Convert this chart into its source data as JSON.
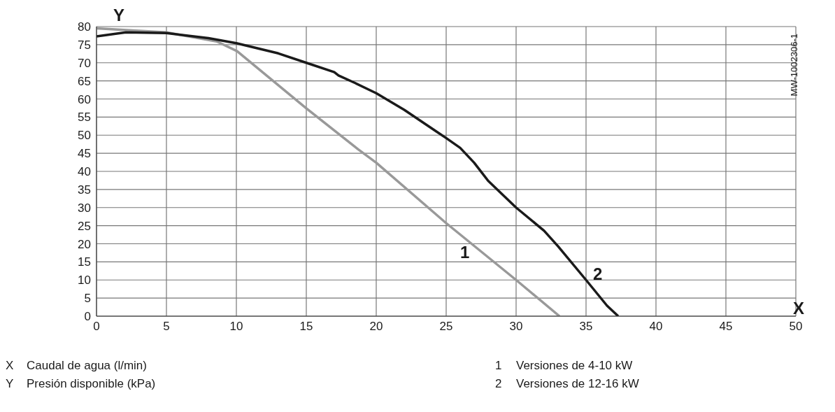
{
  "chart_data": {
    "type": "line",
    "xlabel": "X",
    "ylabel": "Y",
    "xlim": [
      0,
      50
    ],
    "xticks": [
      0,
      5,
      10,
      15,
      20,
      25,
      30,
      35,
      40,
      45,
      50
    ],
    "ylim": [
      0,
      80
    ],
    "yticks": [
      0,
      5,
      10,
      15,
      20,
      25,
      30,
      35,
      40,
      45,
      50,
      55,
      60,
      65,
      70,
      75,
      80
    ],
    "grid": true,
    "marker": "none",
    "line_style": "solid",
    "series": [
      {
        "name": "1",
        "color": "#999999",
        "x": [
          0,
          5,
          8.6,
          10.05,
          15,
          18.7,
          20,
          25,
          30,
          33.1
        ],
        "values": [
          79.5,
          78.4,
          75.9,
          73.2,
          57.4,
          46.1,
          42.4,
          25.7,
          10,
          0
        ]
      },
      {
        "name": "2",
        "color": "#1a1a1a",
        "x": [
          0,
          2.1,
          5,
          8,
          10,
          13,
          15,
          17,
          17.3,
          18.5,
          20,
          22,
          24.3,
          25,
          26,
          27,
          28,
          30,
          32,
          33,
          35,
          36.5,
          37.3
        ],
        "values": [
          77.3,
          78.4,
          78.2,
          76.8,
          75.4,
          72.6,
          70,
          67.4,
          66.5,
          64.4,
          61.6,
          57,
          51,
          49.2,
          46.5,
          42.4,
          37.4,
          30,
          23.6,
          19.3,
          10,
          2.9,
          0
        ]
      }
    ],
    "annotations": [
      "MW-1002306-1",
      "X  Caudal de agua (l/min)",
      "Y  Presión disponible (kPa)",
      "1  Versiones de 4-10 kW",
      "2  Versiones de 12-16 kW"
    ]
  }
}
